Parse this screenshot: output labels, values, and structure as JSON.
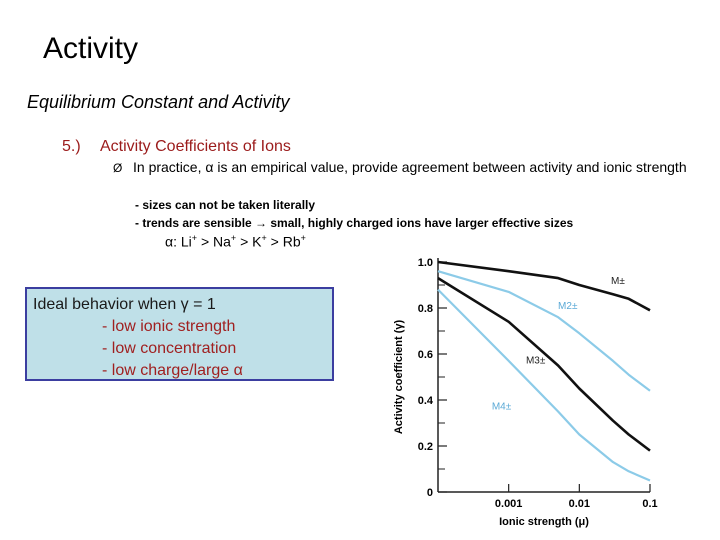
{
  "slide": {
    "title": "Activity",
    "subtitle": "Equilibrium Constant and Activity",
    "section_number": "5.)",
    "section_title": "Activity Coefficients of Ions",
    "bullet_marker": "Ø",
    "bullet_text": "In practice, α is an empirical value,  provide agreement between activity and ionic strength",
    "notes": [
      "- sizes can not be taken literally",
      "- trends are sensible → small, highly charged ions have larger effective sizes"
    ],
    "alpha_series": {
      "alpha": "α",
      "colon": ":",
      "li": "Li",
      "na": "Na",
      "k": "K",
      "rb": "Rb",
      "plus": "+",
      "gt": ">"
    },
    "box": {
      "heading": "Ideal behavior when γ = 1",
      "items": [
        "- low ionic strength",
        "- low concentration",
        "- low charge/large α"
      ]
    }
  },
  "chart_data": {
    "type": "line",
    "xlabel": "Ionic strength (μ)",
    "ylabel": "Activity coefficient (γ)",
    "x_scale": "log",
    "xlim": [
      0.0001,
      0.1
    ],
    "ylim": [
      0,
      1.0
    ],
    "x_ticks": [
      "0.001",
      "0.01",
      "0.1"
    ],
    "y_ticks": [
      "0",
      "0.2",
      "0.4",
      "0.6",
      "0.8",
      "1.0"
    ],
    "series": [
      {
        "name": "M±",
        "color": "#111111",
        "x": [
          0.0001,
          0.001,
          0.005,
          0.01,
          0.03,
          0.05,
          0.1
        ],
        "y": [
          1.0,
          0.96,
          0.93,
          0.9,
          0.86,
          0.84,
          0.79
        ]
      },
      {
        "name": "M2±",
        "color": "#8ccbe8",
        "x": [
          0.0001,
          0.001,
          0.005,
          0.01,
          0.03,
          0.05,
          0.1
        ],
        "y": [
          0.96,
          0.87,
          0.76,
          0.69,
          0.57,
          0.51,
          0.44
        ]
      },
      {
        "name": "M3±",
        "color": "#111111",
        "x": [
          0.0001,
          0.001,
          0.005,
          0.01,
          0.03,
          0.05,
          0.1
        ],
        "y": [
          0.93,
          0.74,
          0.55,
          0.45,
          0.31,
          0.25,
          0.18
        ]
      },
      {
        "name": "M4±",
        "color": "#8ccbe8",
        "x": [
          0.0001,
          0.001,
          0.005,
          0.01,
          0.03,
          0.05,
          0.1
        ],
        "y": [
          0.88,
          0.57,
          0.35,
          0.25,
          0.13,
          0.09,
          0.05
        ]
      }
    ]
  }
}
